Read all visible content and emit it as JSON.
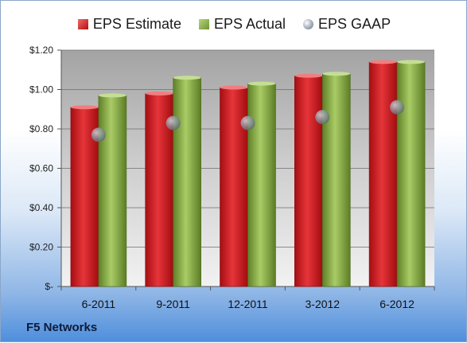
{
  "chart_data": {
    "type": "bar",
    "categories": [
      "6-2011",
      "9-2011",
      "12-2011",
      "3-2012",
      "6-2012"
    ],
    "series": [
      {
        "name": "EPS Estimate",
        "values": [
          0.91,
          0.98,
          1.01,
          1.07,
          1.14
        ],
        "color": "#c0141a",
        "kind": "bar"
      },
      {
        "name": "EPS Actual",
        "values": [
          0.97,
          1.06,
          1.03,
          1.08,
          1.14
        ],
        "color": "#7a9c3a",
        "kind": "bar"
      },
      {
        "name": "EPS GAAP",
        "values": [
          0.77,
          0.83,
          0.83,
          0.86,
          0.91
        ],
        "color": "#8a96a3",
        "kind": "scatter"
      }
    ],
    "yticks": [
      0,
      0.2,
      0.4,
      0.6,
      0.8,
      1.0,
      1.2
    ],
    "ytick_labels": [
      "$-",
      "$0.20",
      "$0.40",
      "$0.60",
      "$0.80",
      "$1.00",
      "$1.20"
    ],
    "ylim": [
      0,
      1.2
    ],
    "grid": true,
    "legend_position": "top",
    "footer": "F5 Networks"
  }
}
